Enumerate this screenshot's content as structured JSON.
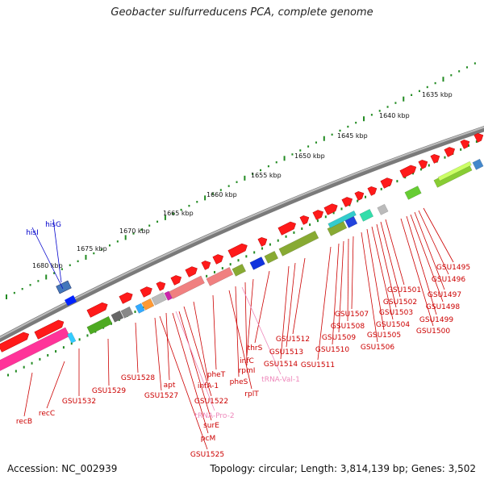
{
  "title": "Geobacter sulfurreducens PCA, complete genome",
  "footer": {
    "accession": "Accession: NC_002939",
    "info": "Topology: circular; Length: 3,814,139 bp; Genes: 3,502"
  },
  "colors": {
    "backbone": "#8c8c8c",
    "gene_forward": "#ff1a1a",
    "gene_reverse_magenta": "#ff3399",
    "label_red": "#cc0000",
    "label_pink": "#ee88bb",
    "label_blue": "#0000cc",
    "tick_green": "#228b22",
    "cog_green": "#4daa22"
  },
  "scale": {
    "ticks": [
      "1635 kbp",
      "1640 kbp",
      "1645 kbp",
      "1650 kbp",
      "1655 kbp",
      "1660 kbp",
      "1665 kbp",
      "1670 kbp",
      "1675 kbp",
      "1680 kbp"
    ]
  },
  "labels": {
    "blue": [
      "hisI",
      "hisG"
    ],
    "red": [
      "GSU1495",
      "GSU1496",
      "GSU1497",
      "GSU1498",
      "GSU1499",
      "GSU1500",
      "GSU1501",
      "GSU1502",
      "GSU1503",
      "GSU1504",
      "GSU1505",
      "GSU1506",
      "GSU1507",
      "GSU1508",
      "GSU1509",
      "GSU1510",
      "GSU1511",
      "GSU1512",
      "GSU1513",
      "GSU1514",
      "thrS",
      "infC",
      "rpmI",
      "pheS",
      "rplT",
      "pheT",
      "infA-1",
      "GSU1522",
      "apt",
      "GSU1527",
      "GSU1528",
      "GSU1529",
      "GSU1532",
      "surE",
      "pcM",
      "GSU1525",
      "recC",
      "recB"
    ],
    "pink": [
      "tRNA-Val-1",
      "tRNA-Pro-2"
    ]
  }
}
